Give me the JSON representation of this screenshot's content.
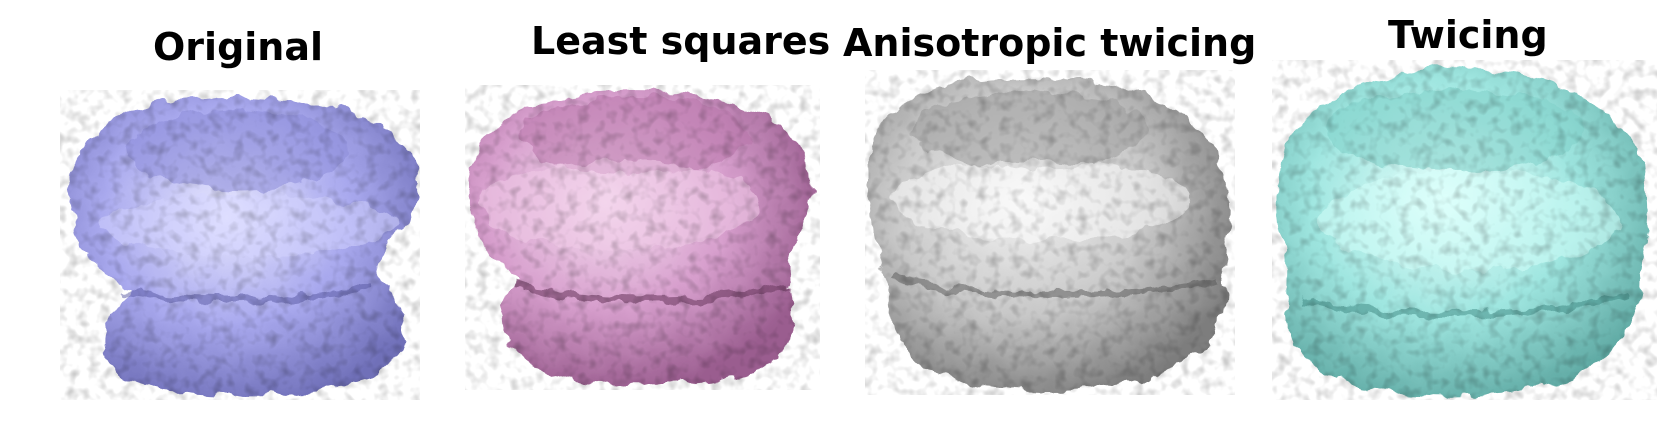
{
  "figure": {
    "panels": [
      {
        "title": "Original",
        "color": "#a9a9ee",
        "shade": "#6f6fb8",
        "highlight": "#e8e8ff"
      },
      {
        "title": "Least squares",
        "color": "#d79fcd",
        "shade": "#9a5d8f",
        "highlight": "#f7e2f2"
      },
      {
        "title": "Anisotropic twicing",
        "color": "#c8c8c8",
        "shade": "#7d7d7d",
        "highlight": "#f4f4f4"
      },
      {
        "title": "Twicing",
        "color": "#9fe6e0",
        "shade": "#5fa9a3",
        "highlight": "#e6fffc"
      }
    ]
  }
}
